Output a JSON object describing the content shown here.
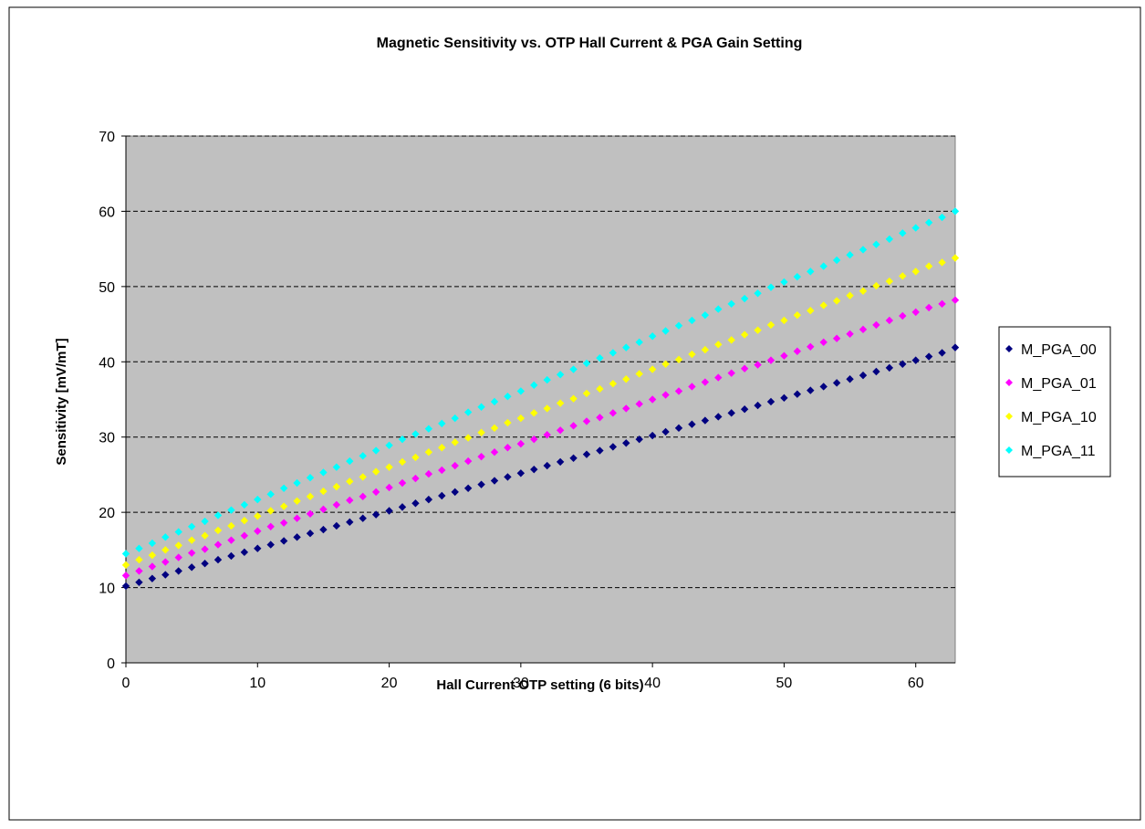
{
  "chart_data": {
    "type": "scatter",
    "title": "Magnetic Sensitivity vs. OTP Hall Current & PGA Gain Setting",
    "xlabel": "Hall Current OTP setting (6 bits)",
    "ylabel": "Sensitivity [mV/mT]",
    "xlim": [
      0,
      63
    ],
    "ylim": [
      0,
      70
    ],
    "xticks": [
      0,
      10,
      20,
      30,
      40,
      50,
      60
    ],
    "yticks": [
      0,
      10,
      20,
      30,
      40,
      50,
      60,
      70
    ],
    "grid": "horizontal dashed",
    "legend_position": "right",
    "plot_background": "#c0c0c0",
    "x": [
      0,
      1,
      2,
      3,
      4,
      5,
      6,
      7,
      8,
      9,
      10,
      11,
      12,
      13,
      14,
      15,
      16,
      17,
      18,
      19,
      20,
      21,
      22,
      23,
      24,
      25,
      26,
      27,
      28,
      29,
      30,
      31,
      32,
      33,
      34,
      35,
      36,
      37,
      38,
      39,
      40,
      41,
      42,
      43,
      44,
      45,
      46,
      47,
      48,
      49,
      50,
      51,
      52,
      53,
      54,
      55,
      56,
      57,
      58,
      59,
      60,
      61,
      62,
      63
    ],
    "series": [
      {
        "name": "M_PGA_00",
        "color": "#000080",
        "marker": "diamond",
        "values": [
          10.2,
          10.7,
          11.2,
          11.7,
          12.2,
          12.7,
          13.2,
          13.7,
          14.2,
          14.7,
          15.2,
          15.7,
          16.2,
          16.7,
          17.2,
          17.7,
          18.2,
          18.7,
          19.2,
          19.7,
          20.2,
          20.7,
          21.2,
          21.7,
          22.2,
          22.7,
          23.2,
          23.7,
          24.2,
          24.7,
          25.2,
          25.7,
          26.2,
          26.7,
          27.2,
          27.7,
          28.2,
          28.7,
          29.2,
          29.7,
          30.2,
          30.7,
          31.2,
          31.7,
          32.2,
          32.7,
          33.2,
          33.7,
          34.2,
          34.7,
          35.2,
          35.7,
          36.2,
          36.7,
          37.2,
          37.7,
          38.2,
          38.7,
          39.2,
          39.7,
          40.2,
          40.7,
          41.2,
          41.9
        ]
      },
      {
        "name": "M_PGA_01",
        "color": "#ff00ff",
        "marker": "diamond",
        "values": [
          11.6,
          12.2,
          12.8,
          13.4,
          14.0,
          14.6,
          15.1,
          15.7,
          16.3,
          16.9,
          17.5,
          18.1,
          18.6,
          19.2,
          19.8,
          20.4,
          21.0,
          21.6,
          22.1,
          22.7,
          23.3,
          23.9,
          24.5,
          25.1,
          25.6,
          26.2,
          26.8,
          27.4,
          28.0,
          28.6,
          29.1,
          29.7,
          30.3,
          30.9,
          31.5,
          32.1,
          32.6,
          33.2,
          33.8,
          34.4,
          35.0,
          35.6,
          36.1,
          36.7,
          37.3,
          37.9,
          38.5,
          39.1,
          39.6,
          40.2,
          40.8,
          41.4,
          42.0,
          42.6,
          43.1,
          43.7,
          44.3,
          44.9,
          45.5,
          46.1,
          46.6,
          47.2,
          47.7,
          48.2
        ]
      },
      {
        "name": "M_PGA_10",
        "color": "#ffff00",
        "marker": "diamond",
        "values": [
          13.0,
          13.7,
          14.3,
          15.0,
          15.6,
          16.3,
          16.9,
          17.6,
          18.2,
          18.9,
          19.5,
          20.2,
          20.8,
          21.5,
          22.1,
          22.8,
          23.4,
          24.1,
          24.7,
          25.4,
          26.0,
          26.7,
          27.3,
          28.0,
          28.6,
          29.3,
          29.9,
          30.6,
          31.2,
          31.9,
          32.5,
          33.2,
          33.8,
          34.5,
          35.1,
          35.8,
          36.4,
          37.1,
          37.7,
          38.4,
          39.0,
          39.7,
          40.3,
          41.0,
          41.6,
          42.3,
          42.9,
          43.6,
          44.2,
          44.9,
          45.5,
          46.2,
          46.8,
          47.5,
          48.1,
          48.8,
          49.4,
          50.1,
          50.7,
          51.4,
          52.0,
          52.7,
          53.2,
          53.8
        ]
      },
      {
        "name": "M_PGA_11",
        "color": "#00ffff",
        "marker": "diamond",
        "values": [
          14.5,
          15.2,
          15.9,
          16.7,
          17.4,
          18.1,
          18.8,
          19.6,
          20.3,
          21.0,
          21.7,
          22.4,
          23.2,
          23.9,
          24.6,
          25.3,
          26.0,
          26.8,
          27.5,
          28.2,
          28.9,
          29.7,
          30.4,
          31.1,
          31.8,
          32.5,
          33.3,
          34.0,
          34.7,
          35.4,
          36.1,
          36.9,
          37.6,
          38.3,
          39.0,
          39.8,
          40.5,
          41.2,
          41.9,
          42.6,
          43.4,
          44.1,
          44.8,
          45.5,
          46.2,
          47.0,
          47.7,
          48.4,
          49.1,
          49.9,
          50.6,
          51.3,
          52.0,
          52.7,
          53.5,
          54.2,
          54.9,
          55.6,
          56.3,
          57.1,
          57.8,
          58.5,
          59.2,
          60.0
        ]
      }
    ]
  }
}
